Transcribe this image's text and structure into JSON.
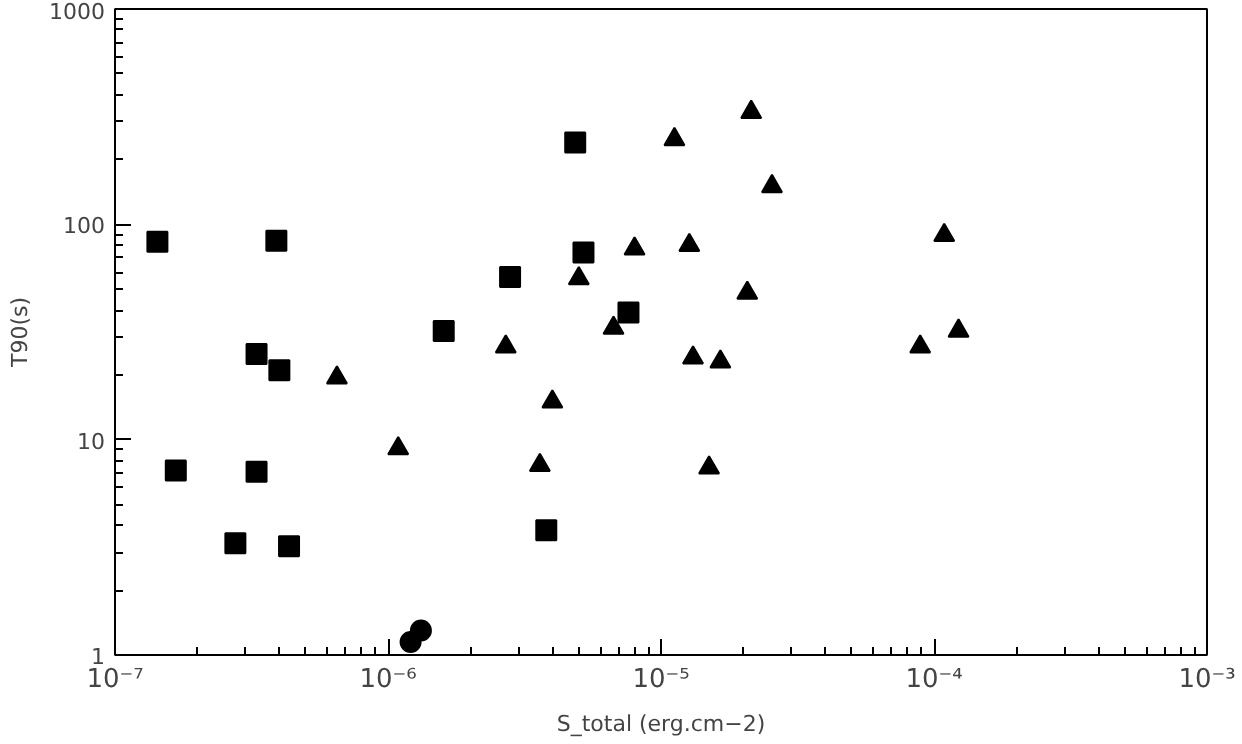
{
  "chart_data": {
    "type": "scatter",
    "xlabel": "S_total (erg.cm−2)",
    "ylabel": "T90(s)",
    "log": "xy",
    "grid": false,
    "xlim": [
      1e-07,
      0.001
    ],
    "ylim": [
      1,
      1000
    ],
    "xticks": [
      {
        "value": 1e-07,
        "label": "10⁻⁷"
      },
      {
        "value": 1e-06,
        "label": "10⁻⁶"
      },
      {
        "value": 1e-05,
        "label": "10⁻⁵"
      },
      {
        "value": 0.0001,
        "label": "10⁻⁴"
      },
      {
        "value": 0.001,
        "label": "10⁻³"
      }
    ],
    "yticks": [
      1,
      10,
      100,
      1000
    ],
    "series": [
      {
        "color": "#000000",
        "marker": "square",
        "x": [
          1.43e-07,
          3.9e-07,
          4.85e-06,
          5.2e-06,
          2.8e-06,
          7.6e-06,
          1.6e-06,
          3.3e-07,
          4e-07,
          1.67e-07,
          3.3e-07,
          2.76e-07,
          4.34e-07,
          3.8e-06
        ],
        "values": [
          83,
          84,
          240,
          74,
          57,
          39,
          32,
          25,
          21,
          7.2,
          7.1,
          3.3,
          3.2,
          3.8
        ]
      },
      {
        "color": "#000000",
        "marker": "triangle",
        "x": [
          6.5e-07,
          1.09e-06,
          2.7e-06,
          3.6e-06,
          4e-06,
          5e-06,
          6.7e-06,
          8e-06,
          1.12e-05,
          2.14e-05,
          2.55e-05,
          1.27e-05,
          2.07e-05,
          1.31e-05,
          1.65e-05,
          1.5e-05,
          8.9e-05,
          0.000109,
          0.000123
        ],
        "values": [
          19.4,
          9.1,
          27,
          7.6,
          15,
          56,
          33,
          77,
          248,
          332,
          150,
          80,
          48,
          24,
          23,
          7.4,
          27,
          89,
          32
        ]
      },
      {
        "color": "#000000",
        "marker": "circle",
        "x": [
          1.21e-06,
          1.32e-06
        ],
        "values": [
          1.15,
          1.3
        ]
      }
    ]
  }
}
